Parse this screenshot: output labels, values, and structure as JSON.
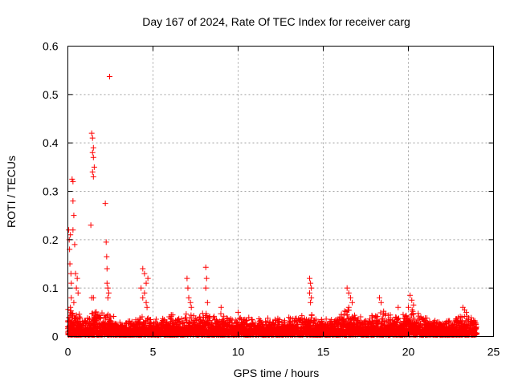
{
  "chart_data": {
    "type": "scatter",
    "title": "Day 167 of 2024, Rate Of TEC Index for receiver carg",
    "xlabel": "GPS time / hours",
    "ylabel": "ROTI / TECUs",
    "xlim": [
      0,
      25
    ],
    "ylim": [
      0,
      0.6
    ],
    "xticks": [
      0,
      5,
      10,
      15,
      20,
      25
    ],
    "xtick_labels": [
      "0",
      "5",
      "10",
      "15",
      "20",
      "25"
    ],
    "yticks": [
      0,
      0.1,
      0.2,
      0.3,
      0.4,
      0.5,
      0.6
    ],
    "ytick_labels": [
      "0",
      "0.1",
      "0.2",
      "0.3",
      "0.4",
      "0.5",
      "0.6"
    ],
    "grid": true,
    "marker": "plus",
    "color": "#ff0000",
    "series": [
      {
        "name": "ROTI",
        "points": [
          [
            0.05,
            0.22
          ],
          [
            0.08,
            0.2
          ],
          [
            0.1,
            0.18
          ],
          [
            0.12,
            0.15
          ],
          [
            0.15,
            0.21
          ],
          [
            0.18,
            0.13
          ],
          [
            0.2,
            0.11
          ],
          [
            0.25,
            0.325
          ],
          [
            0.3,
            0.32
          ],
          [
            0.3,
            0.28
          ],
          [
            0.35,
            0.25
          ],
          [
            0.3,
            0.22
          ],
          [
            0.4,
            0.19
          ],
          [
            0.45,
            0.13
          ],
          [
            0.5,
            0.1
          ],
          [
            0.55,
            0.12
          ],
          [
            0.6,
            0.09
          ],
          [
            0.35,
            0.07
          ],
          [
            0.2,
            0.08
          ],
          [
            0.15,
            0.06
          ],
          [
            1.4,
            0.42
          ],
          [
            1.45,
            0.41
          ],
          [
            1.5,
            0.39
          ],
          [
            1.45,
            0.38
          ],
          [
            1.5,
            0.37
          ],
          [
            1.55,
            0.35
          ],
          [
            1.45,
            0.34
          ],
          [
            1.5,
            0.33
          ],
          [
            1.35,
            0.23
          ],
          [
            1.4,
            0.08
          ],
          [
            1.5,
            0.08
          ],
          [
            2.2,
            0.275
          ],
          [
            2.25,
            0.195
          ],
          [
            2.28,
            0.165
          ],
          [
            2.3,
            0.14
          ],
          [
            2.3,
            0.11
          ],
          [
            2.35,
            0.1
          ],
          [
            2.4,
            0.09
          ],
          [
            2.35,
            0.08
          ],
          [
            2.45,
            0.537
          ],
          [
            4.4,
            0.14
          ],
          [
            4.5,
            0.13
          ],
          [
            4.3,
            0.1
          ],
          [
            4.6,
            0.11
          ],
          [
            4.7,
            0.12
          ],
          [
            4.5,
            0.09
          ],
          [
            4.4,
            0.08
          ],
          [
            4.6,
            0.07
          ],
          [
            4.65,
            0.06
          ],
          [
            7.0,
            0.12
          ],
          [
            7.05,
            0.1
          ],
          [
            7.1,
            0.08
          ],
          [
            7.2,
            0.07
          ],
          [
            7.25,
            0.06
          ],
          [
            8.1,
            0.143
          ],
          [
            8.15,
            0.12
          ],
          [
            8.1,
            0.1
          ],
          [
            8.2,
            0.07
          ],
          [
            9.0,
            0.06
          ],
          [
            10.0,
            0.05
          ],
          [
            14.2,
            0.12
          ],
          [
            14.25,
            0.11
          ],
          [
            14.3,
            0.1
          ],
          [
            14.2,
            0.09
          ],
          [
            14.3,
            0.08
          ],
          [
            14.25,
            0.07
          ],
          [
            16.4,
            0.1
          ],
          [
            16.5,
            0.09
          ],
          [
            16.6,
            0.08
          ],
          [
            16.7,
            0.07
          ],
          [
            16.5,
            0.06
          ],
          [
            18.3,
            0.08
          ],
          [
            18.4,
            0.07
          ],
          [
            19.4,
            0.06
          ],
          [
            20.1,
            0.085
          ],
          [
            20.2,
            0.075
          ],
          [
            20.3,
            0.065
          ],
          [
            20.0,
            0.06
          ],
          [
            23.2,
            0.06
          ],
          [
            23.3,
            0.055
          ],
          [
            23.4,
            0.05
          ]
        ],
        "envelope_hours": [
          0,
          0.5,
          1,
          1.5,
          2,
          2.5,
          3,
          3.5,
          4,
          4.5,
          5,
          5.5,
          6,
          6.5,
          7,
          7.5,
          8,
          8.5,
          9,
          9.5,
          10,
          10.5,
          11,
          11.5,
          12,
          12.5,
          13,
          13.5,
          14,
          14.5,
          15,
          15.5,
          16,
          16.5,
          17,
          17.5,
          18,
          18.5,
          19,
          19.5,
          20,
          20.5,
          21,
          21.5,
          22,
          22.5,
          23,
          23.5,
          24
        ],
        "envelope_values": [
          0.06,
          0.05,
          0.035,
          0.06,
          0.05,
          0.045,
          0.03,
          0.03,
          0.04,
          0.05,
          0.03,
          0.04,
          0.05,
          0.04,
          0.05,
          0.04,
          0.05,
          0.04,
          0.05,
          0.04,
          0.045,
          0.04,
          0.04,
          0.035,
          0.04,
          0.035,
          0.04,
          0.04,
          0.05,
          0.04,
          0.035,
          0.04,
          0.05,
          0.06,
          0.05,
          0.04,
          0.05,
          0.05,
          0.045,
          0.04,
          0.06,
          0.05,
          0.04,
          0.035,
          0.035,
          0.035,
          0.05,
          0.04,
          0.035
        ]
      }
    ]
  }
}
